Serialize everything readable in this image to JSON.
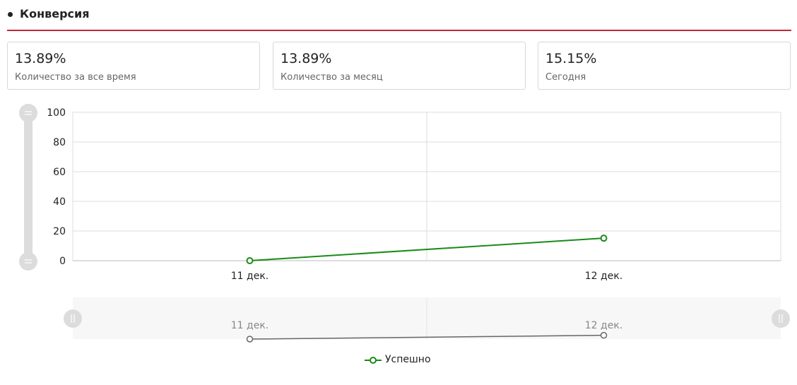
{
  "header": {
    "title": "Конверсия"
  },
  "stats": [
    {
      "value": "13.89%",
      "label": "Количество за все время"
    },
    {
      "value": "13.89%",
      "label": "Количество за месяц"
    },
    {
      "value": "15.15%",
      "label": "Сегодня"
    }
  ],
  "colors": {
    "accent": "#c0263a",
    "series": "#1a8a1a",
    "navigator_series": "#666666"
  },
  "icons": [
    "bullet-dot-icon",
    "range-handle-icon",
    "navigator-handle-icon",
    "legend-line-marker-icon"
  ],
  "chart_data": {
    "type": "line",
    "title": "",
    "xlabel": "",
    "ylabel": "",
    "categories": [
      "11 дек.",
      "12 дек."
    ],
    "yticks": [
      "0",
      "20",
      "40",
      "60",
      "80",
      "100"
    ],
    "ylim": [
      0,
      100
    ],
    "grid": true,
    "legend_position": "bottom-center",
    "series": [
      {
        "name": "Успешно",
        "values": [
          0,
          15.15
        ]
      }
    ],
    "navigator": {
      "categories": [
        "11 дек.",
        "12 дек."
      ]
    }
  }
}
